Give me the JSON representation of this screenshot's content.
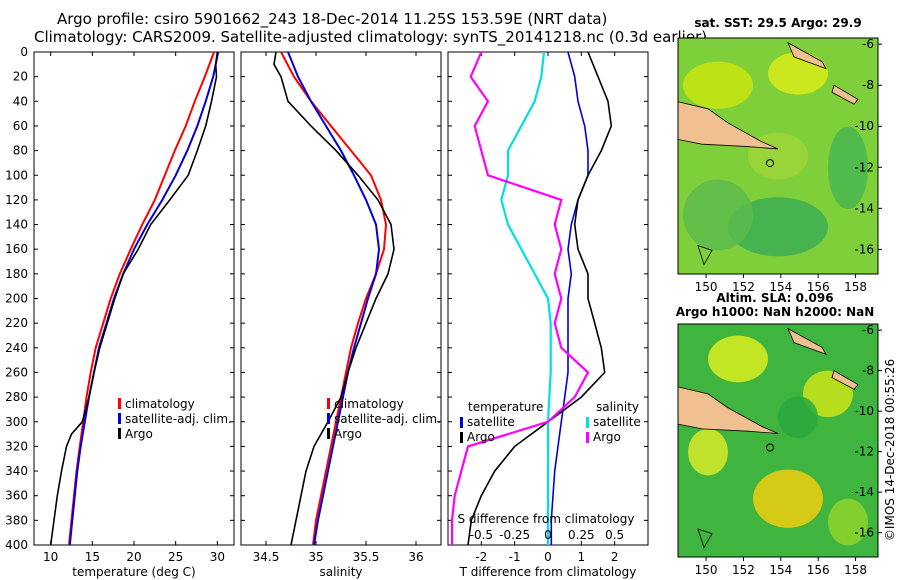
{
  "header": {
    "line1": "Argo profile: csiro 5901662_243 18-Dec-2014 11.25S 153.59E (NRT data)",
    "line2": "Climatology: CARS2009. Satellite-adjusted climatology: synTS_20141218.nc (0.3d earlier)"
  },
  "colors": {
    "climatology": "#ff0000",
    "satellite": "#0000dd",
    "argo": "#000000",
    "salinity_sat": "#00e0e0",
    "salinity_argo": "#ff00ff"
  },
  "depth_ticks": [
    "0",
    "20",
    "40",
    "60",
    "80",
    "100",
    "120",
    "140",
    "160",
    "180",
    "200",
    "220",
    "240",
    "260",
    "280",
    "300",
    "320",
    "340",
    "360",
    "380",
    "400"
  ],
  "chart_data": [
    {
      "type": "line",
      "name": "temperature",
      "xlabel": "temperature (deg C)",
      "ylabel": "depth",
      "xlim": [
        8,
        32
      ],
      "ylim": [
        400,
        0
      ],
      "xticks": [
        "10",
        "15",
        "20",
        "25",
        "30"
      ],
      "xtick_values": [
        10,
        15,
        20,
        25,
        30
      ],
      "legend": [
        "climatology",
        "satellite-adj. clim.",
        "Argo"
      ],
      "series": [
        {
          "name": "climatology",
          "depth": [
            0,
            20,
            40,
            60,
            80,
            100,
            120,
            140,
            160,
            180,
            200,
            220,
            240,
            260,
            280,
            300,
            320,
            340,
            360,
            380,
            400
          ],
          "values": [
            29.6,
            28.5,
            27.3,
            26.2,
            24.9,
            23.7,
            22.5,
            21.0,
            19.6,
            18.3,
            17.2,
            16.3,
            15.4,
            14.8,
            14.3,
            13.9,
            13.5,
            13.1,
            12.8,
            12.5,
            12.2
          ]
        },
        {
          "name": "satellite-adj. clim.",
          "depth": [
            0,
            20,
            40,
            60,
            80,
            100,
            120,
            140,
            160,
            180,
            200,
            220,
            240,
            260,
            280,
            300,
            320,
            340,
            360,
            380,
            400
          ],
          "values": [
            30.1,
            29.5,
            28.6,
            27.6,
            26.4,
            25.0,
            23.4,
            21.6,
            20.0,
            18.7,
            17.6,
            16.7,
            15.8,
            15.2,
            14.6,
            14.1,
            13.6,
            13.2,
            12.9,
            12.6,
            12.3
          ]
        },
        {
          "name": "Argo",
          "depth": [
            0,
            10,
            20,
            40,
            60,
            80,
            100,
            120,
            140,
            160,
            180,
            200,
            220,
            240,
            260,
            280,
            300,
            310,
            320,
            340,
            360,
            380,
            400
          ],
          "values": [
            30.0,
            29.8,
            29.9,
            29.3,
            28.6,
            27.6,
            26.5,
            24.3,
            22.0,
            20.5,
            18.7,
            17.7,
            16.8,
            15.9,
            15.2,
            14.6,
            13.8,
            12.5,
            11.9,
            11.3,
            10.8,
            10.4,
            10.0
          ]
        }
      ]
    },
    {
      "type": "line",
      "name": "salinity",
      "xlabel": "salinity",
      "ylabel": "depth",
      "xlim": [
        34.25,
        36.25
      ],
      "ylim": [
        400,
        0
      ],
      "xticks": [
        "34.5",
        "35",
        "35.5",
        "36"
      ],
      "xtick_values": [
        34.5,
        35,
        35.5,
        36
      ],
      "legend": [
        "climatology",
        "satellite-adj. clim.",
        "Argo"
      ],
      "series": [
        {
          "name": "climatology",
          "depth": [
            0,
            20,
            40,
            60,
            80,
            100,
            120,
            140,
            160,
            180,
            200,
            220,
            240,
            260,
            280,
            300,
            320,
            340,
            360,
            380,
            400
          ],
          "values": [
            34.65,
            34.78,
            34.95,
            35.15,
            35.35,
            35.55,
            35.65,
            35.7,
            35.68,
            35.6,
            35.5,
            35.42,
            35.35,
            35.3,
            35.25,
            35.2,
            35.15,
            35.1,
            35.05,
            35.0,
            34.97
          ]
        },
        {
          "name": "satellite-adj. clim.",
          "depth": [
            0,
            20,
            40,
            60,
            80,
            100,
            120,
            140,
            160,
            180,
            200,
            220,
            240,
            260,
            280,
            300,
            320,
            340,
            360,
            380,
            400
          ],
          "values": [
            34.72,
            34.82,
            34.95,
            35.1,
            35.25,
            35.38,
            35.5,
            35.6,
            35.63,
            35.6,
            35.52,
            35.45,
            35.38,
            35.32,
            35.27,
            35.22,
            35.17,
            35.12,
            35.07,
            35.02,
            34.98
          ]
        },
        {
          "name": "Argo",
          "depth": [
            0,
            10,
            20,
            40,
            60,
            80,
            100,
            120,
            140,
            160,
            180,
            200,
            220,
            240,
            260,
            280,
            300,
            320,
            340,
            360,
            380,
            400
          ],
          "values": [
            34.6,
            34.58,
            34.65,
            34.72,
            34.95,
            35.2,
            35.42,
            35.62,
            35.75,
            35.78,
            35.72,
            35.6,
            35.5,
            35.4,
            35.32,
            35.25,
            35.12,
            34.98,
            34.9,
            34.85,
            34.8,
            34.75
          ]
        }
      ]
    },
    {
      "type": "line",
      "name": "differences",
      "xlabel": "T difference from climatology",
      "ylabel": "depth",
      "xlim": [
        -3,
        3
      ],
      "ylim": [
        400,
        0
      ],
      "xticks": [
        "-2",
        "-1",
        "0",
        "1",
        "2"
      ],
      "xtick_values": [
        -2,
        -1,
        0,
        1,
        2
      ],
      "s_label": "S difference from climatology",
      "s_ticks": [
        "-0.5",
        "-0.25",
        "0",
        "0.25",
        "0.5"
      ],
      "legend_temperature": [
        "temperature",
        "satellite",
        "Argo"
      ],
      "legend_salinity": [
        "salinity",
        "satellite",
        "Argo"
      ],
      "series": [
        {
          "name": "T satellite",
          "depth": [
            0,
            20,
            40,
            60,
            80,
            100,
            120,
            140,
            160,
            180,
            200,
            220,
            240,
            260,
            280,
            300,
            320,
            340,
            360,
            380,
            400
          ],
          "values": [
            0.6,
            0.8,
            0.9,
            1.1,
            1.2,
            1.2,
            0.9,
            0.7,
            0.6,
            0.7,
            0.6,
            0.6,
            0.6,
            0.6,
            0.5,
            0.4,
            0.3,
            0.2,
            0.15,
            0.1,
            0.1
          ]
        },
        {
          "name": "T Argo",
          "depth": [
            0,
            20,
            40,
            60,
            80,
            100,
            120,
            140,
            160,
            180,
            200,
            220,
            240,
            260,
            280,
            300,
            320,
            340,
            360,
            380,
            400
          ],
          "values": [
            1.2,
            1.5,
            1.8,
            1.9,
            1.6,
            1.2,
            0.9,
            0.8,
            0.9,
            1.2,
            1.2,
            1.4,
            1.6,
            1.7,
            1.0,
            0.0,
            -1.0,
            -1.6,
            -2.0,
            -2.3,
            -2.4
          ]
        },
        {
          "name": "S satellite",
          "depth": [
            0,
            20,
            40,
            60,
            80,
            100,
            120,
            140,
            160,
            180,
            200,
            220,
            240,
            260,
            280,
            300,
            320,
            340,
            360,
            380,
            400
          ],
          "values": [
            -0.03,
            -0.05,
            -0.1,
            -0.2,
            -0.3,
            -0.3,
            -0.35,
            -0.3,
            -0.2,
            -0.1,
            0.0,
            0.02,
            0.02,
            0.02,
            0.01,
            0.0,
            0.0,
            0.0,
            0.0,
            0.0,
            0.0
          ]
        },
        {
          "name": "S Argo",
          "depth": [
            0,
            20,
            40,
            60,
            80,
            100,
            120,
            140,
            160,
            180,
            200,
            220,
            240,
            260,
            280,
            300,
            320,
            340,
            360,
            380,
            400
          ],
          "values": [
            -0.5,
            -0.58,
            -0.45,
            -0.55,
            -0.5,
            -0.45,
            0.1,
            0.05,
            0.1,
            0.05,
            0.1,
            0.05,
            0.1,
            0.3,
            0.2,
            0.0,
            -0.6,
            -0.65,
            -0.7,
            -0.72,
            -0.72
          ]
        }
      ]
    }
  ],
  "map_sst": {
    "title": "sat. SST: 29.5 Argo: 29.9",
    "lat_ticks": [
      "-6",
      "-8",
      "-10",
      "-12",
      "-14",
      "-16"
    ],
    "lon_ticks": [
      "150",
      "152",
      "154",
      "156",
      "158"
    ]
  },
  "map_sla": {
    "title1": "Altim. SLA: 0.096",
    "title2": "Argo h1000: NaN h2000: NaN",
    "lat_ticks": [
      "-6",
      "-8",
      "-10",
      "-12",
      "-14",
      "-16"
    ],
    "lon_ticks": [
      "150",
      "152",
      "154",
      "156",
      "158"
    ]
  },
  "credit": "©IMOS 14-Dec-2018 00:55:26"
}
